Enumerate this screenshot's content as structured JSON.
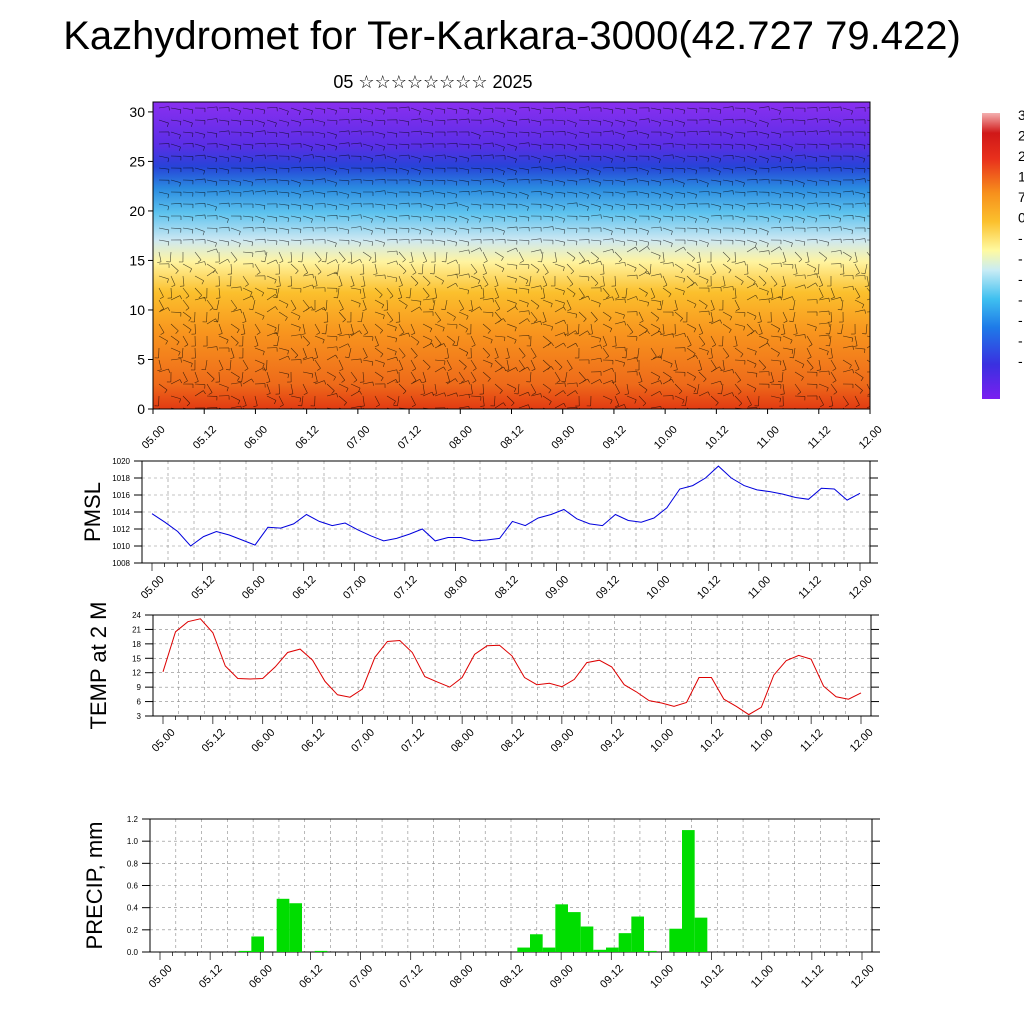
{
  "page": {
    "title": "Kazhydromet for Ter-Karkara-3000(42.727 79.422)",
    "subtitle": "05 ☆☆☆☆☆☆☆☆ 2025"
  },
  "colors": {
    "pmsl_line": "#0000dd",
    "temp_line": "#dd0000",
    "precip_bar": "#00dd00",
    "grid": "#888888"
  },
  "chart_data": [
    {
      "type": "heatmap",
      "name": "cross-section",
      "x_ticks": [
        "05.00",
        "05.12",
        "06.00",
        "06.12",
        "07.00",
        "07.12",
        "08.00",
        "08.12",
        "09.00",
        "09.12",
        "10.00",
        "10.12",
        "11.00",
        "11.12",
        "12.00"
      ],
      "y_ticks": [
        "0",
        "5",
        "10",
        "15",
        "20",
        "25",
        "30"
      ],
      "ylim": [
        0,
        31
      ],
      "colorbar_labels": [
        "3",
        "2",
        "2",
        "1",
        "7",
        "0",
        "-",
        "-",
        "-",
        "-",
        "-",
        "-",
        "-"
      ],
      "overlay": "wind barbs"
    },
    {
      "type": "line",
      "name": "pmsl",
      "ylabel": "PMSL",
      "y_ticks": [
        "1008",
        "1010",
        "1012",
        "1014",
        "1016",
        "1018",
        "1020"
      ],
      "ylim": [
        1008,
        1020
      ],
      "x_ticks": [
        "05.00",
        "05.12",
        "06.00",
        "06.12",
        "07.00",
        "07.12",
        "08.00",
        "08.12",
        "09.00",
        "09.12",
        "10.00",
        "10.12",
        "11.00",
        "11.12",
        "12.00"
      ],
      "values": [
        1013.8,
        1012.8,
        1011.7,
        1010.0,
        1011.1,
        1011.7,
        1011.3,
        1010.7,
        1010.1,
        1012.2,
        1012.1,
        1012.6,
        1013.7,
        1012.9,
        1012.4,
        1012.7,
        1011.9,
        1011.2,
        1010.6,
        1010.9,
        1011.4,
        1012.0,
        1010.6,
        1011.0,
        1011.0,
        1010.6,
        1010.7,
        1010.9,
        1012.9,
        1012.4,
        1013.3,
        1013.7,
        1014.3,
        1013.2,
        1012.6,
        1012.4,
        1013.7,
        1013.0,
        1012.8,
        1013.3,
        1014.5,
        1016.7,
        1017.1,
        1018.0,
        1019.4,
        1018.0,
        1017.1,
        1016.6,
        1016.4,
        1016.1,
        1015.7,
        1015.5,
        1016.8,
        1016.7,
        1015.4,
        1016.2
      ]
    },
    {
      "type": "line",
      "name": "temp",
      "ylabel": "TEMP at 2 M",
      "y_ticks": [
        "3",
        "6",
        "9",
        "12",
        "15",
        "18",
        "21",
        "24"
      ],
      "ylim": [
        3,
        24
      ],
      "x_ticks": [
        "05.00",
        "05.12",
        "06.00",
        "06.12",
        "07.00",
        "07.12",
        "08.00",
        "08.12",
        "09.00",
        "09.12",
        "10.00",
        "10.12",
        "11.00",
        "11.12",
        "12.00"
      ],
      "values": [
        12.2,
        20.5,
        22.6,
        23.2,
        20.3,
        13.4,
        10.8,
        10.7,
        10.8,
        13.2,
        16.2,
        16.9,
        14.6,
        10.2,
        7.4,
        6.9,
        8.6,
        15.2,
        18.5,
        18.7,
        16.2,
        11.2,
        10.1,
        9.0,
        11.0,
        15.8,
        17.6,
        17.7,
        15.5,
        11.0,
        9.5,
        9.8,
        9.1,
        10.6,
        14.1,
        14.6,
        13.2,
        9.5,
        8.0,
        6.2,
        5.7,
        5.0,
        5.8,
        11.0,
        11.0,
        6.5,
        5.0,
        3.3,
        4.8,
        11.5,
        14.5,
        15.6,
        14.8,
        9.2,
        7.0,
        6.5,
        7.8
      ]
    },
    {
      "type": "bar",
      "name": "precip",
      "ylabel": "PRECIP, mm",
      "y_ticks": [
        "0.0",
        "0.2",
        "0.4",
        "0.6",
        "0.8",
        "1.0",
        "1.2"
      ],
      "ylim": [
        0,
        1.2
      ],
      "x_ticks": [
        "05.00",
        "05.12",
        "06.00",
        "06.12",
        "07.00",
        "07.12",
        "08.00",
        "08.12",
        "09.00",
        "09.12",
        "10.00",
        "10.12",
        "11.00",
        "11.12",
        "12.00"
      ],
      "values": [
        0,
        0,
        0,
        0,
        0,
        0,
        0,
        0.01,
        0.14,
        0,
        0.48,
        0.44,
        0,
        0.01,
        0,
        0,
        0,
        0,
        0,
        0,
        0,
        0,
        0,
        0,
        0,
        0,
        0,
        0,
        0,
        0.04,
        0.16,
        0.04,
        0.43,
        0.36,
        0.23,
        0.02,
        0.04,
        0.17,
        0.32,
        0.01,
        0,
        0.21,
        1.1,
        0.31,
        0,
        0,
        0,
        0,
        0,
        0,
        0,
        0,
        0,
        0,
        0,
        0,
        0
      ]
    }
  ]
}
